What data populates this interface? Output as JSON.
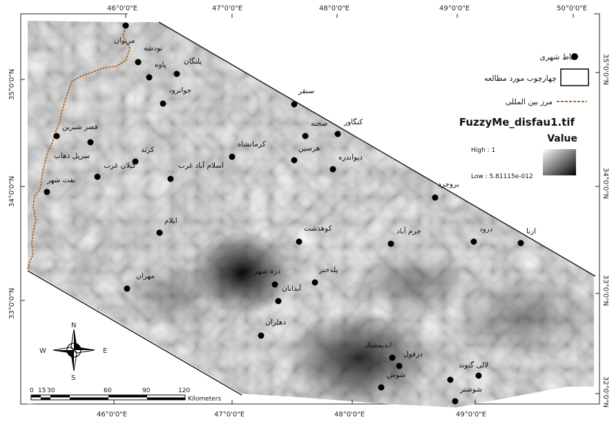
{
  "axes": {
    "top_lon": [
      "46°0'0\"E",
      "47°0'0\"E",
      "48°0'0\"E",
      "49°0'0\"E",
      "50°0'0\"E"
    ],
    "bottom_lon": [
      "46°0'0\"E",
      "47°0'0\"E",
      "48°0'0\"E",
      "49°0'0\"E"
    ],
    "left_lat": [
      "35°0'0\"N",
      "34°0'0\"N",
      "33°0'0\"N"
    ],
    "right_lat": [
      "35°0'0\"N",
      "34°0'0\"N",
      "33°0'0\"N",
      "32°0'0\"N"
    ]
  },
  "cities": [
    {
      "name": "مریوان"
    },
    {
      "name": "نودشه"
    },
    {
      "name": "پاوه"
    },
    {
      "name": "پلنگان"
    },
    {
      "name": "جوانرود"
    },
    {
      "name": "قصر شیرین"
    },
    {
      "name": "سرپل ذهاب"
    },
    {
      "name": "گیلان غرب"
    },
    {
      "name": "کرند"
    },
    {
      "name": "نفت شهر"
    },
    {
      "name": "اسلام آباد غرب"
    },
    {
      "name": "کرمانشاه"
    },
    {
      "name": "سنقر"
    },
    {
      "name": "کنگاور"
    },
    {
      "name": "صحنه"
    },
    {
      "name": "هرسین"
    },
    {
      "name": "دیواندره"
    },
    {
      "name": "بروجرد"
    },
    {
      "name": "ایلام"
    },
    {
      "name": "کوهدشت"
    },
    {
      "name": "خرم آباد"
    },
    {
      "name": "درود"
    },
    {
      "name": "ازنا"
    },
    {
      "name": "مهران"
    },
    {
      "name": "دره شهر"
    },
    {
      "name": "پلدختر"
    },
    {
      "name": "آبدانان"
    },
    {
      "name": "دهلران"
    },
    {
      "name": "اندیمشک"
    },
    {
      "name": "دزفول"
    },
    {
      "name": "شوش"
    },
    {
      "name": "لالی گتوند"
    },
    {
      "name": "شوشتر"
    }
  ],
  "legend": {
    "points_label": "نقاط شهری",
    "frame_label": "چهارچوب مورد مطالعه",
    "border_label": "مرز بین المللی",
    "raster_title": "FuzzyMe_disfau1.tif",
    "value_label": "Value",
    "high_label": "High : 1",
    "low_label": "Low : 5.81115e-012"
  },
  "north_arrow": {
    "n": "N",
    "s": "S",
    "e": "E",
    "w": "W"
  },
  "scale_bar": {
    "ticks": [
      "0",
      "15",
      "30",
      "60",
      "90",
      "120"
    ],
    "units": "Kilometers"
  }
}
